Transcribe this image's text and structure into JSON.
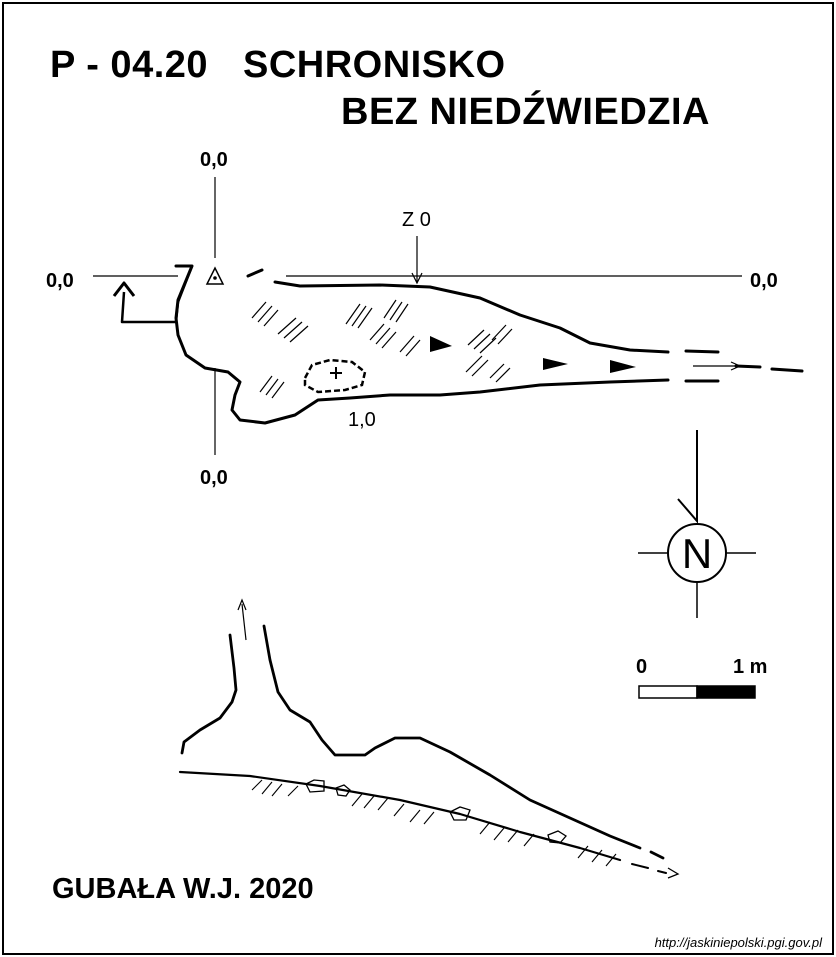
{
  "title": {
    "code": "P - 04.20",
    "name_line1": "SCHRONISKO",
    "name_line2": "BEZ NIEDŹWIEDZIA"
  },
  "plan": {
    "reference_top": "0,0",
    "reference_left": "0,0",
    "reference_right": "0,0",
    "reference_bottom": "0,0",
    "section_marker": "Z 0",
    "depth_label": "1,0"
  },
  "north_arrow": {
    "letter": "N"
  },
  "scale_bar": {
    "start_label": "0",
    "end_label": "1 m"
  },
  "author": "GUBAŁA W.J. 2020",
  "source": "http://jaskiniepolski.pgi.gov.pl"
}
